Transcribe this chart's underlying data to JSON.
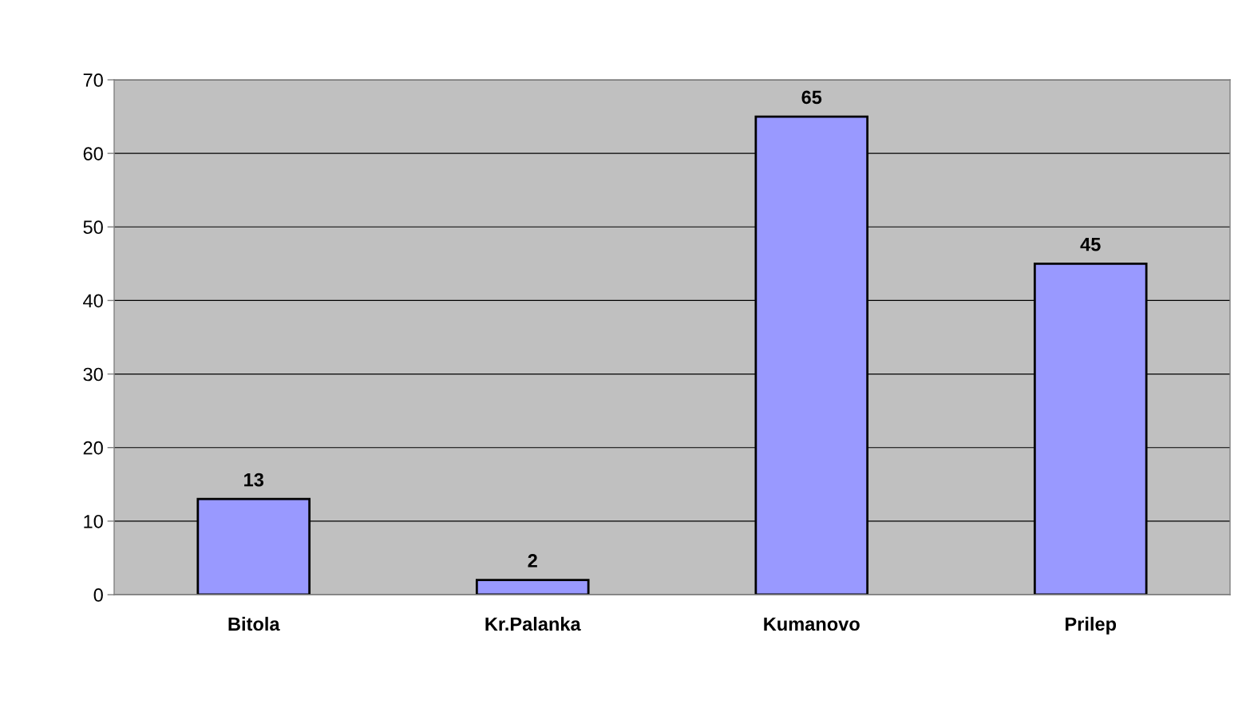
{
  "chart_data": {
    "type": "bar",
    "categories": [
      "Bitola",
      "Kr.Palanka",
      "Kumanovo",
      "Prilep"
    ],
    "values": [
      13,
      2,
      65,
      45
    ],
    "color": "#9999ff",
    "ylim": [
      0,
      70
    ],
    "yticks": [
      0,
      10,
      20,
      30,
      40,
      50,
      60,
      70
    ],
    "grid": "y",
    "data_labels": true
  }
}
